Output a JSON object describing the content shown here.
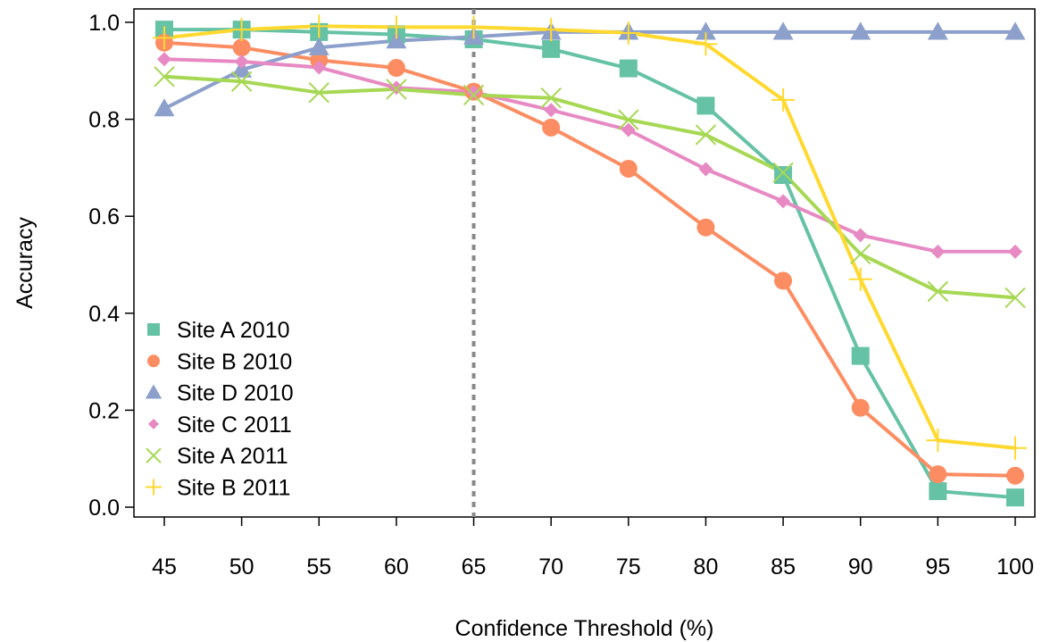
{
  "chart_data": {
    "type": "line",
    "title": "",
    "xlabel": "Confidence Threshold (%)",
    "ylabel": "Accuracy",
    "x": [
      45,
      50,
      55,
      60,
      65,
      70,
      75,
      80,
      85,
      90,
      95,
      100
    ],
    "x_tick_labels": [
      "45",
      "50",
      "55",
      "60",
      "65",
      "70",
      "75",
      "80",
      "85",
      "90",
      "95",
      "100"
    ],
    "y_tick_labels": [
      "0.0",
      "0.2",
      "0.4",
      "0.6",
      "0.8",
      "1.0"
    ],
    "y_ticks": [
      0.0,
      0.2,
      0.4,
      0.6,
      0.8,
      1.0
    ],
    "xlim": [
      45,
      100
    ],
    "ylim": [
      0.0,
      1.0
    ],
    "grid": false,
    "legend_position": "bottom-left",
    "reference_line": {
      "x": 65,
      "style": "dotted",
      "color": "#888888"
    },
    "series": [
      {
        "name": "Site A 2010",
        "marker": "square",
        "color": "#66c2a5",
        "values": [
          0.985,
          0.985,
          0.98,
          0.975,
          0.965,
          0.945,
          0.905,
          0.828,
          0.685,
          0.312,
          0.033,
          0.02
        ]
      },
      {
        "name": "Site B 2010",
        "marker": "circle",
        "color": "#fc8d62",
        "values": [
          0.958,
          0.948,
          0.922,
          0.906,
          0.857,
          0.783,
          0.698,
          0.577,
          0.467,
          0.205,
          0.068,
          0.065
        ]
      },
      {
        "name": "Site D 2010",
        "marker": "triangle",
        "color": "#8da0cb",
        "values": [
          0.822,
          0.902,
          0.948,
          0.962,
          0.97,
          0.98,
          0.98,
          0.98,
          0.98,
          0.98,
          0.98,
          0.98
        ]
      },
      {
        "name": "Site C 2011",
        "marker": "diamond",
        "color": "#e78ac3",
        "values": [
          0.924,
          0.919,
          0.907,
          0.865,
          0.856,
          0.819,
          0.778,
          0.697,
          0.631,
          0.561,
          0.527,
          0.527
        ]
      },
      {
        "name": "Site A 2011",
        "marker": "x",
        "color": "#a6d854",
        "values": [
          0.888,
          0.878,
          0.855,
          0.862,
          0.85,
          0.844,
          0.799,
          0.768,
          0.69,
          0.522,
          0.445,
          0.432
        ]
      },
      {
        "name": "Site B 2011",
        "marker": "plus",
        "color": "#ffd92f",
        "values": [
          0.968,
          0.985,
          0.992,
          0.99,
          0.99,
          0.985,
          0.978,
          0.955,
          0.84,
          0.47,
          0.138,
          0.122
        ]
      }
    ]
  }
}
